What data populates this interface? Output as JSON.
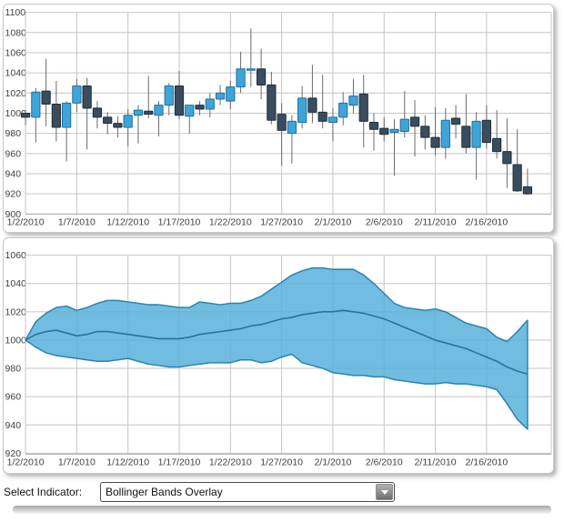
{
  "indicator_bar": {
    "label": "Select Indicator:",
    "selected_option": "Bollinger Bands Overlay"
  },
  "icons": {
    "dropdown-arrow": "triangle-down"
  },
  "chart_data": [
    {
      "type": "candlestick",
      "ylim": [
        900,
        1100
      ],
      "y_ticks": [
        1100,
        1080,
        1060,
        1040,
        1020,
        1000,
        980,
        960,
        940,
        920,
        900
      ],
      "x_tick_labels": [
        "1/2/2010",
        "1/7/2010",
        "1/12/2010",
        "1/17/2010",
        "1/22/2010",
        "1/27/2010",
        "2/1/2010",
        "2/6/2010",
        "2/11/2010",
        "2/16/2010"
      ],
      "x_tick_every": 5,
      "grid": true,
      "colors": {
        "up_fill": "#3FA5D8",
        "up_stroke": "#1E6F9C",
        "down_fill": "#394D5F",
        "down_stroke": "#1F2E3B",
        "wick": "#6b6b6b",
        "grid": "#c6c6c6",
        "axis_text": "#404040"
      },
      "open": [
        1000,
        996,
        1022,
        1009,
        986,
        1010,
        1027,
        1005,
        996,
        990,
        986,
        998,
        1002,
        998,
        1008,
        1027,
        997,
        1008,
        1004,
        1014,
        1012,
        1026,
        1043,
        1044,
        1028,
        999,
        980,
        991,
        1015,
        1001,
        991,
        996,
        1008,
        1019,
        991,
        985,
        981,
        982,
        996,
        987,
        976,
        966,
        995,
        987,
        966,
        993,
        975,
        962,
        949,
        927
      ],
      "high": [
        1003,
        1025,
        1054,
        1032,
        1012,
        1034,
        1035,
        1012,
        1001,
        997,
        1004,
        1008,
        1037,
        1012,
        1030,
        1042,
        1008,
        1012,
        1020,
        1028,
        1032,
        1061,
        1084,
        1064,
        1041,
        1010,
        998,
        1027,
        1048,
        1038,
        1005,
        1021,
        1034,
        1038,
        1000,
        996,
        994,
        1022,
        1013,
        998,
        1006,
        1005,
        1008,
        1019,
        1001,
        1008,
        1003,
        995,
        984,
        945
      ],
      "low": [
        988,
        971,
        987,
        972,
        952,
        1001,
        964,
        985,
        979,
        976,
        967,
        970,
        995,
        977,
        998,
        994,
        980,
        998,
        996,
        1008,
        1004,
        1020,
        1026,
        1014,
        989,
        948,
        950,
        985,
        990,
        985,
        972,
        988,
        1000,
        966,
        963,
        972,
        938,
        976,
        957,
        964,
        958,
        955,
        975,
        960,
        934,
        965,
        955,
        926,
        922,
        919
      ],
      "close": [
        996,
        1021,
        1009,
        986,
        1010,
        1027,
        1005,
        996,
        990,
        986,
        998,
        1003,
        999,
        1008,
        1027,
        998,
        1008,
        1004,
        1014,
        1020,
        1026,
        1044,
        1044,
        1028,
        993,
        983,
        992,
        1015,
        1001,
        992,
        996,
        1010,
        1017,
        992,
        984,
        979,
        984,
        994,
        987,
        976,
        966,
        993,
        989,
        966,
        992,
        971,
        962,
        950,
        923,
        920
      ]
    },
    {
      "type": "area",
      "name": "Bollinger Bands Overlay",
      "ylim": [
        920,
        1060
      ],
      "y_ticks": [
        1060,
        1040,
        1020,
        1000,
        980,
        960,
        940,
        920
      ],
      "x_tick_labels": [
        "1/2/2010",
        "1/7/2010",
        "1/12/2010",
        "1/17/2010",
        "1/22/2010",
        "1/27/2010",
        "2/1/2010",
        "2/6/2010",
        "2/11/2010",
        "2/16/2010"
      ],
      "x_tick_every": 5,
      "grid": true,
      "colors": {
        "band_fill": "#50AEDA",
        "band_edge": "#2C83AD",
        "middle_line": "#29739A",
        "grid": "#c6c6c6",
        "axis_text": "#404040"
      },
      "upper": [
        1000,
        1013,
        1019,
        1023,
        1024,
        1021,
        1023,
        1026,
        1028,
        1028,
        1027,
        1026,
        1025,
        1025,
        1024,
        1023,
        1023,
        1027,
        1026,
        1025,
        1026,
        1026,
        1028,
        1031,
        1036,
        1041,
        1046,
        1049,
        1051,
        1051,
        1050,
        1050,
        1050,
        1046,
        1040,
        1033,
        1026,
        1023,
        1022,
        1021,
        1022,
        1020,
        1016,
        1012,
        1010,
        1008,
        1002,
        999,
        1006,
        1014
      ],
      "middle": [
        1000,
        1004,
        1006,
        1007,
        1005,
        1003,
        1004,
        1006,
        1006,
        1005,
        1004,
        1003,
        1002,
        1001,
        1001,
        1001,
        1002,
        1004,
        1005,
        1006,
        1007,
        1008,
        1010,
        1011,
        1013,
        1015,
        1016,
        1018,
        1019,
        1020,
        1020,
        1021,
        1020,
        1019,
        1017,
        1015,
        1012,
        1009,
        1006,
        1003,
        1000,
        998,
        996,
        994,
        991,
        988,
        985,
        981,
        978,
        976
      ],
      "lower": [
        1000,
        995,
        991,
        989,
        988,
        987,
        986,
        985,
        985,
        986,
        987,
        985,
        983,
        982,
        981,
        981,
        982,
        983,
        984,
        984,
        984,
        986,
        986,
        984,
        985,
        988,
        990,
        984,
        982,
        980,
        977,
        976,
        975,
        975,
        974,
        974,
        972,
        971,
        970,
        969,
        969,
        970,
        969,
        969,
        968,
        967,
        965,
        955,
        944,
        937
      ]
    }
  ]
}
